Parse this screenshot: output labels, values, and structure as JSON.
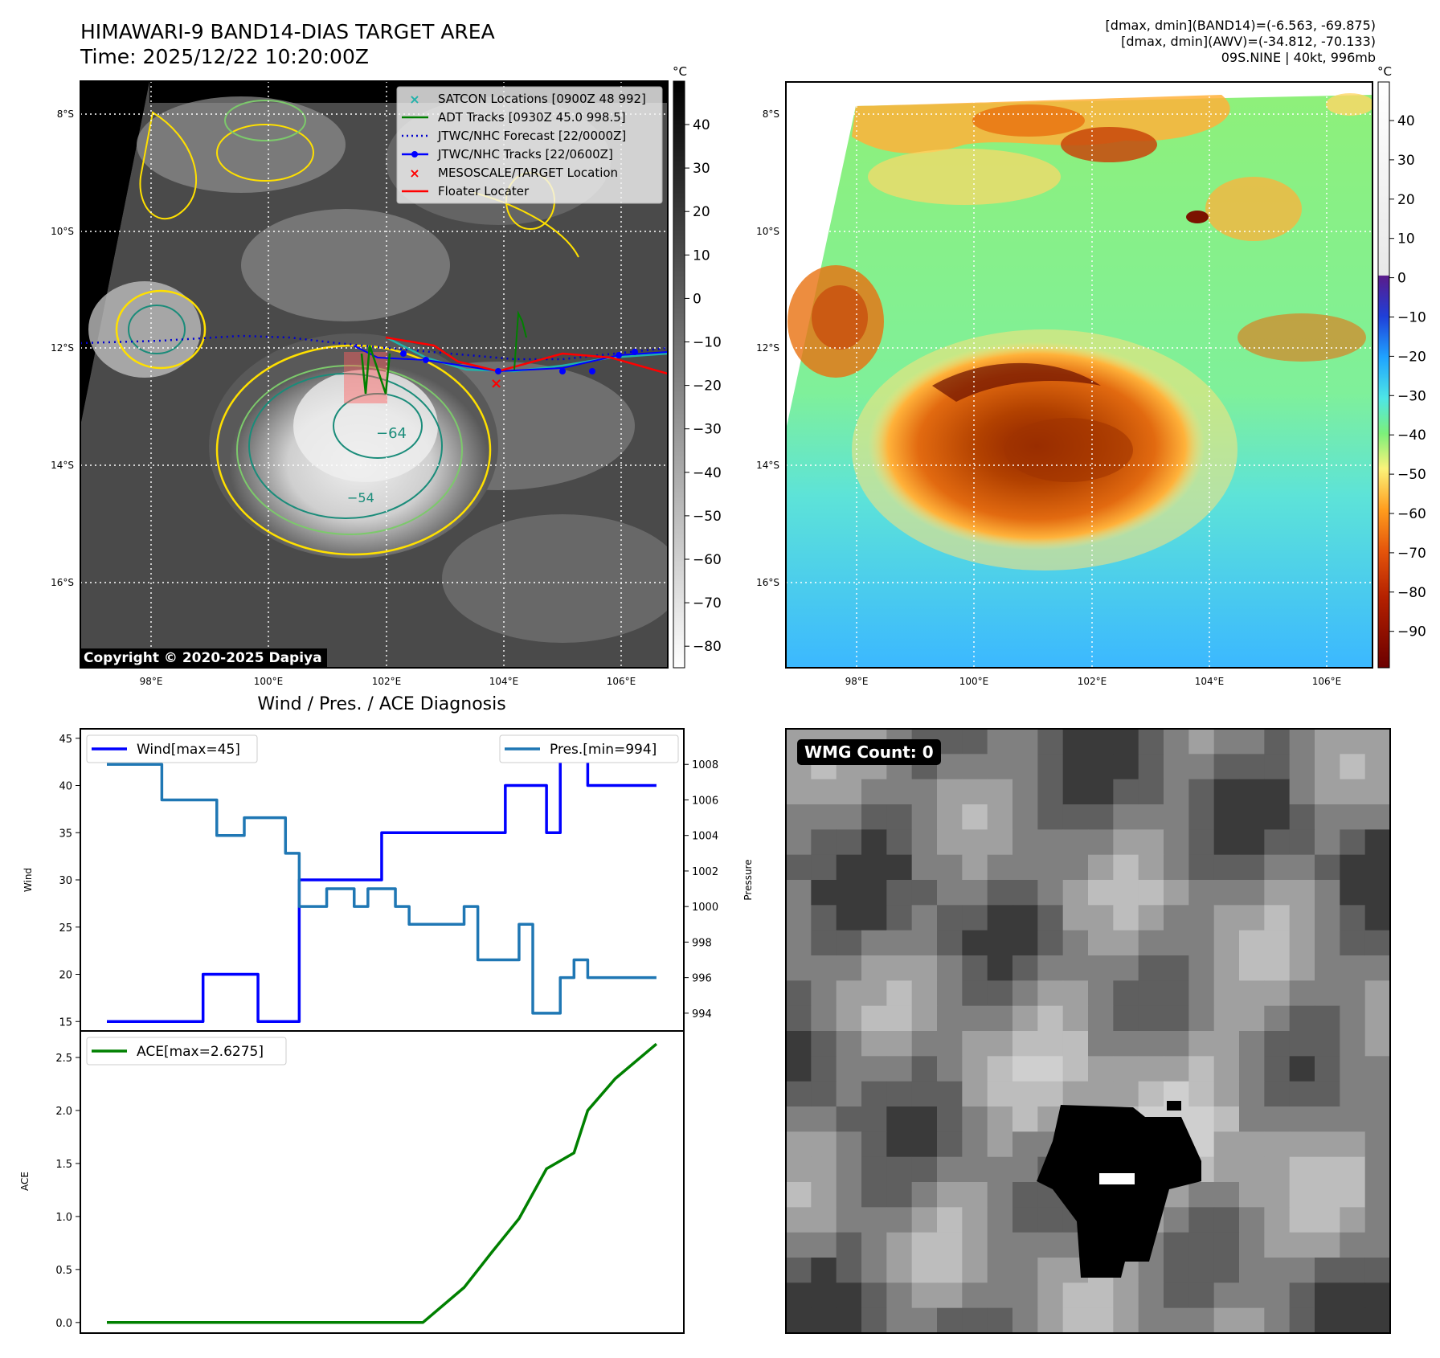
{
  "header": {
    "title_line1": "HIMAWARI-9 BAND14-DIAS TARGET AREA",
    "title_line2": "Time: 2025/12/22 10:20:00Z",
    "info_line1": "[dmax, dmin](BAND14)=(-6.563, -69.875)",
    "info_line2": "[dmax, dmin](AWV)=(-34.812, -70.133)",
    "info_line3": "09S.NINE | 40kt, 996mb"
  },
  "map": {
    "lat_labels": [
      "8°S",
      "10°S",
      "12°S",
      "14°S",
      "16°S"
    ],
    "lon_labels": [
      "98°E",
      "100°E",
      "102°E",
      "104°E",
      "106°E"
    ],
    "contour_label_1": "−64",
    "contour_label_2": "−54",
    "copyright": "Copyright © 2020-2025 Dapiya",
    "legend": [
      {
        "label": "SATCON Locations [0900Z 48 992]",
        "color": "#20b2aa",
        "marker": "x"
      },
      {
        "label": "ADT Tracks [0930Z 45.0 998.5]",
        "color": "#008000",
        "marker": "line"
      },
      {
        "label": "JTWC/NHC Forecast [22/0000Z]",
        "color": "#0000cc",
        "marker": "dotted"
      },
      {
        "label": "JTWC/NHC Tracks [22/0600Z]",
        "color": "#0000ff",
        "marker": "line-dot"
      },
      {
        "label": "MESOSCALE/TARGET Location",
        "color": "#ff0000",
        "marker": "x"
      },
      {
        "label": "Floater Locater",
        "color": "#ff0000",
        "marker": "line"
      }
    ]
  },
  "colorbar_gray": {
    "unit": "°C",
    "ticks": [
      "40",
      "30",
      "20",
      "10",
      "0",
      "−10",
      "−20",
      "−30",
      "−40",
      "−50",
      "−60",
      "−70",
      "−80"
    ]
  },
  "colorbar_color": {
    "unit": "°C",
    "ticks": [
      "40",
      "30",
      "20",
      "10",
      "0",
      "−10",
      "−20",
      "−30",
      "−40",
      "−50",
      "−60",
      "−70",
      "−80",
      "−90"
    ]
  },
  "chart_data": [
    {
      "type": "line",
      "title": "Wind / Pres. / ACE Diagnosis",
      "ylabel": "Wind",
      "ylabel_right": "Pressure",
      "ylim": [
        14,
        46
      ],
      "ylim_right": [
        993,
        1010
      ],
      "yticks": [
        "15",
        "20",
        "25",
        "30",
        "35",
        "40",
        "45"
      ],
      "yticks_right": [
        "994",
        "996",
        "998",
        "1000",
        "1002",
        "1004",
        "1006",
        "1008"
      ],
      "x": [
        0,
        2,
        4,
        6,
        7,
        8,
        9,
        10,
        11,
        12,
        13,
        14,
        15,
        16,
        17,
        18,
        19,
        20,
        21,
        22,
        23,
        24,
        25,
        26,
        27,
        28,
        29,
        30,
        31,
        32,
        33,
        34,
        35,
        36,
        37,
        38,
        39,
        40
      ],
      "series": [
        {
          "name": "Wind[max=45]",
          "color": "#0000ff",
          "values": [
            15,
            15,
            15,
            15,
            20,
            20,
            20,
            20,
            15,
            15,
            15,
            30,
            30,
            30,
            30,
            30,
            30,
            35,
            35,
            35,
            35,
            35,
            35,
            35,
            35,
            35,
            40,
            40,
            40,
            35,
            45,
            45,
            40,
            40,
            40,
            40,
            40,
            40
          ]
        },
        {
          "name": "Pres.[min=994]",
          "color": "#1f77b4",
          "axis": "right",
          "values": [
            1008,
            1008,
            1006,
            1006,
            1006,
            1004,
            1004,
            1005,
            1005,
            1005,
            1003,
            1000,
            1000,
            1001,
            1001,
            1000,
            1001,
            1001,
            1000,
            999,
            999,
            999,
            999,
            1000,
            997,
            997,
            997,
            999,
            994,
            994,
            996,
            997,
            996,
            996,
            996,
            996,
            996,
            996
          ]
        }
      ]
    },
    {
      "type": "line",
      "ylabel": "ACE",
      "ylim": [
        -0.1,
        2.75
      ],
      "yticks": [
        "0.0",
        "0.5",
        "1.0",
        "1.5",
        "2.0",
        "2.5"
      ],
      "x": [
        0,
        23,
        26,
        28,
        30,
        32,
        34,
        35,
        37,
        40
      ],
      "series": [
        {
          "name": "ACE[max=2.6275]",
          "color": "#008000",
          "values": [
            0,
            0,
            0.33,
            0.66,
            0.98,
            1.45,
            1.6,
            2.0,
            2.3,
            2.6275
          ]
        }
      ]
    }
  ],
  "wmg": {
    "badge": "WMG Count: 0"
  }
}
